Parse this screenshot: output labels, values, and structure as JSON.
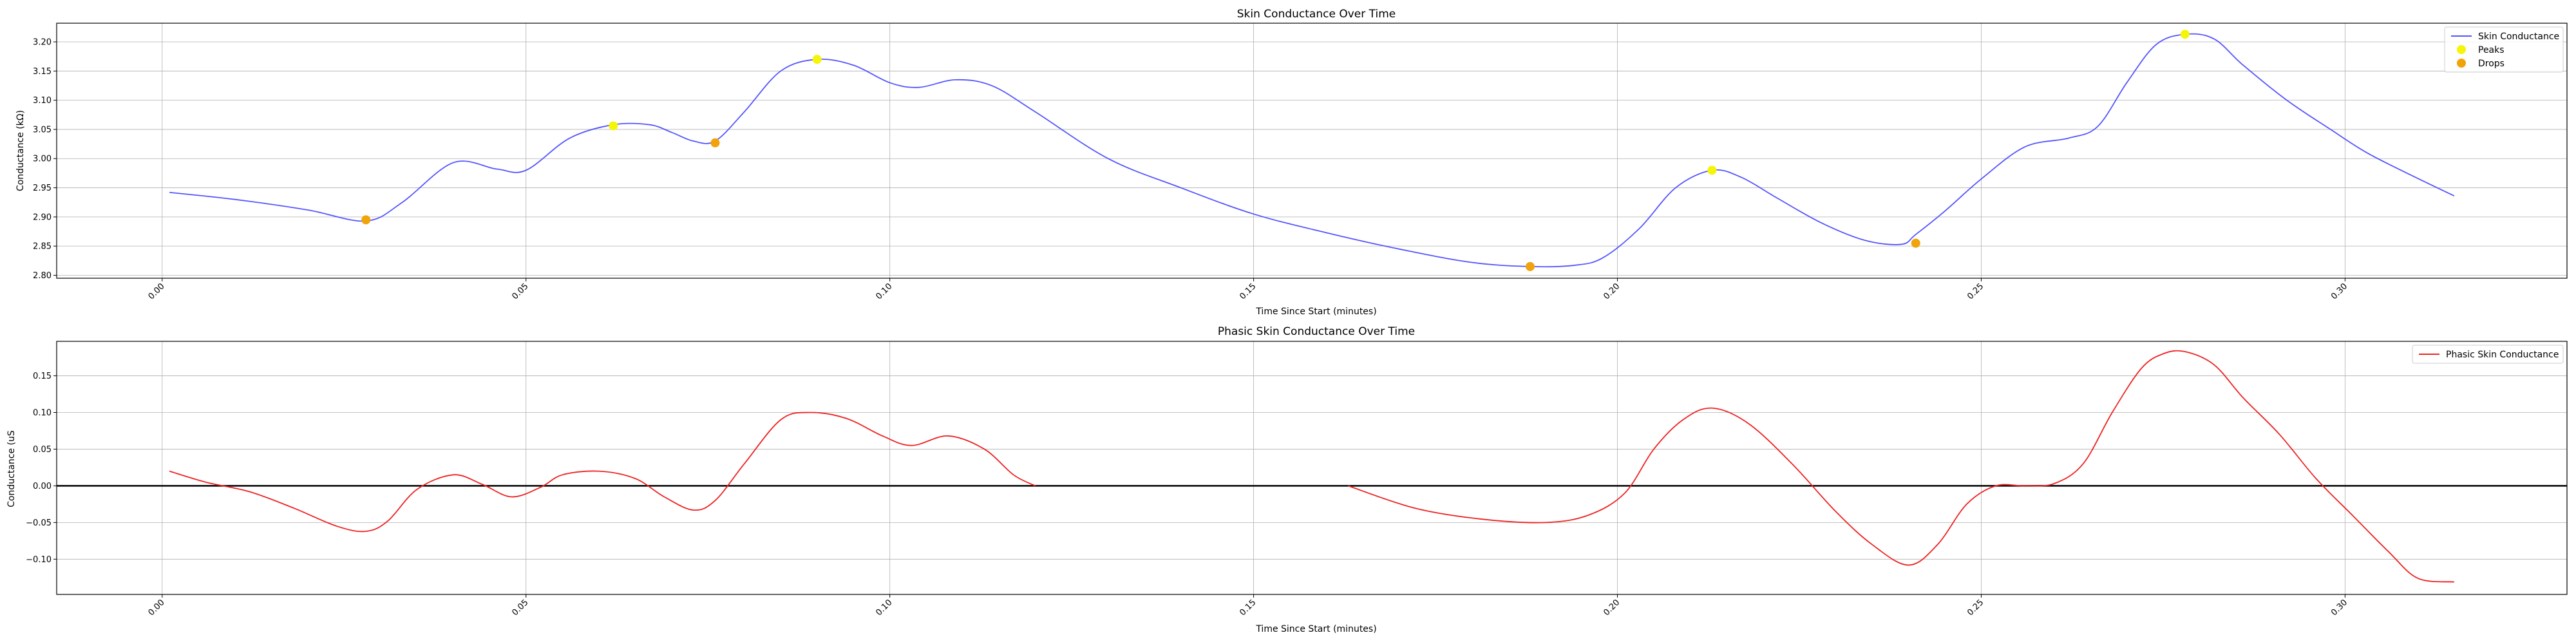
{
  "chart_data": [
    {
      "type": "line",
      "title": "Skin Conductance Over Time",
      "xlabel": "Time Since Start (minutes)",
      "ylabel": "Conductance (kΩ)",
      "xlim": [
        -0.0145,
        0.3305
      ],
      "ylim": [
        2.795,
        3.232
      ],
      "xticks": [
        0.0,
        0.05,
        0.1,
        0.15,
        0.2,
        0.25,
        0.3
      ],
      "xtick_labels": [
        "0.00",
        "0.05",
        "0.10",
        "0.15",
        "0.20",
        "0.25",
        "0.30"
      ],
      "yticks": [
        2.8,
        2.85,
        2.9,
        2.95,
        3.0,
        3.05,
        3.1,
        3.15,
        3.2
      ],
      "ytick_labels": [
        "2.80",
        "2.85",
        "2.90",
        "2.95",
        "3.00",
        "3.05",
        "3.10",
        "3.15",
        "3.20"
      ],
      "grid": true,
      "legend_position": "top-right",
      "series": [
        {
          "name": "Skin Conductance",
          "kind": "line",
          "color": "#5555ff",
          "x": [
            0.001,
            0.01,
            0.02,
            0.028,
            0.033,
            0.04,
            0.046,
            0.05,
            0.056,
            0.062,
            0.067,
            0.07,
            0.073,
            0.076,
            0.08,
            0.085,
            0.09,
            0.095,
            0.1,
            0.104,
            0.109,
            0.114,
            0.12,
            0.13,
            0.14,
            0.15,
            0.16,
            0.17,
            0.18,
            0.188,
            0.194,
            0.198,
            0.203,
            0.208,
            0.213,
            0.217,
            0.222,
            0.228,
            0.234,
            0.239,
            0.241,
            0.245,
            0.25,
            0.256,
            0.262,
            0.266,
            0.27,
            0.274,
            0.278,
            0.282,
            0.286,
            0.292,
            0.298,
            0.303,
            0.309,
            0.315
          ],
          "y": [
            2.942,
            2.93,
            2.912,
            2.893,
            2.925,
            2.993,
            2.982,
            2.98,
            3.035,
            3.058,
            3.058,
            3.045,
            3.03,
            3.03,
            3.08,
            3.15,
            3.17,
            3.16,
            3.13,
            3.122,
            3.135,
            3.125,
            3.08,
            3.0,
            2.95,
            2.905,
            2.873,
            2.845,
            2.822,
            2.815,
            2.817,
            2.83,
            2.88,
            2.95,
            2.98,
            2.968,
            2.932,
            2.89,
            2.86,
            2.853,
            2.87,
            2.91,
            2.965,
            3.02,
            3.035,
            3.055,
            3.13,
            3.195,
            3.213,
            3.205,
            3.16,
            3.1,
            3.05,
            3.01,
            2.972,
            2.936
          ]
        },
        {
          "name": "Peaks",
          "kind": "scatter",
          "color": "#f5f50a",
          "x": [
            0.062,
            0.09,
            0.213,
            0.278
          ],
          "y": [
            3.056,
            3.17,
            2.98,
            3.213
          ]
        },
        {
          "name": "Drops",
          "kind": "scatter",
          "color": "#f0a30a",
          "x": [
            0.028,
            0.076,
            0.188,
            0.241
          ],
          "y": [
            2.895,
            3.027,
            2.815,
            2.855
          ]
        }
      ]
    },
    {
      "type": "line",
      "title": "Phasic Skin Conductance Over Time",
      "xlabel": "Time Since Start (minutes)",
      "ylabel": "Conductance (uS",
      "xlim": [
        -0.0145,
        0.3305
      ],
      "ylim": [
        -0.148,
        0.197
      ],
      "xticks": [
        0.0,
        0.05,
        0.1,
        0.15,
        0.2,
        0.25,
        0.3
      ],
      "xtick_labels": [
        "0.00",
        "0.05",
        "0.10",
        "0.15",
        "0.20",
        "0.25",
        "0.30"
      ],
      "yticks": [
        -0.1,
        -0.05,
        0.0,
        0.05,
        0.1,
        0.15
      ],
      "ytick_labels": [
        "−0.10",
        "−0.05",
        "0.00",
        "0.05",
        "0.10",
        "0.15"
      ],
      "grid": true,
      "zero_line": true,
      "legend_position": "top-right",
      "series": [
        {
          "name": "Phasic Skin Conductance",
          "kind": "line",
          "color": "#ee2222",
          "segments": [
            {
              "x": [
                0.001,
                0.006,
                0.012,
                0.018,
                0.024,
                0.028,
                0.031,
                0.035,
                0.04,
                0.044,
                0.048,
                0.052,
                0.055,
                0.06,
                0.065,
                0.069,
                0.073,
                0.076,
                0.08,
                0.085,
                0.089,
                0.094,
                0.099,
                0.103,
                0.108,
                0.113,
                0.117,
                0.12
              ],
              "y": [
                0.02,
                0.005,
                -0.008,
                -0.03,
                -0.055,
                -0.062,
                -0.048,
                -0.005,
                0.015,
                0.002,
                -0.015,
                -0.002,
                0.015,
                0.02,
                0.01,
                -0.015,
                -0.033,
                -0.02,
                0.03,
                0.09,
                0.1,
                0.092,
                0.068,
                0.055,
                0.068,
                0.05,
                0.015,
                0.0
              ]
            },
            {
              "x": [
                0.163,
                0.172,
                0.181,
                0.19,
                0.196,
                0.201,
                0.205,
                0.209,
                0.213,
                0.218,
                0.224,
                0.23,
                0.235,
                0.24,
                0.244,
                0.248,
                0.252,
                0.256,
                0.26,
                0.264,
                0.268,
                0.272,
                0.275,
                0.278,
                0.282,
                0.286,
                0.291,
                0.296,
                0.301,
                0.306,
                0.31,
                0.315
              ],
              "y": [
                0.0,
                -0.03,
                -0.045,
                -0.05,
                -0.04,
                -0.01,
                0.05,
                0.09,
                0.106,
                0.085,
                0.03,
                -0.035,
                -0.08,
                -0.108,
                -0.08,
                -0.025,
                0.0,
                0.0,
                0.003,
                0.03,
                0.1,
                0.16,
                0.18,
                0.183,
                0.165,
                0.12,
                0.07,
                0.01,
                -0.04,
                -0.09,
                -0.126,
                -0.131
              ]
            }
          ]
        }
      ]
    }
  ]
}
